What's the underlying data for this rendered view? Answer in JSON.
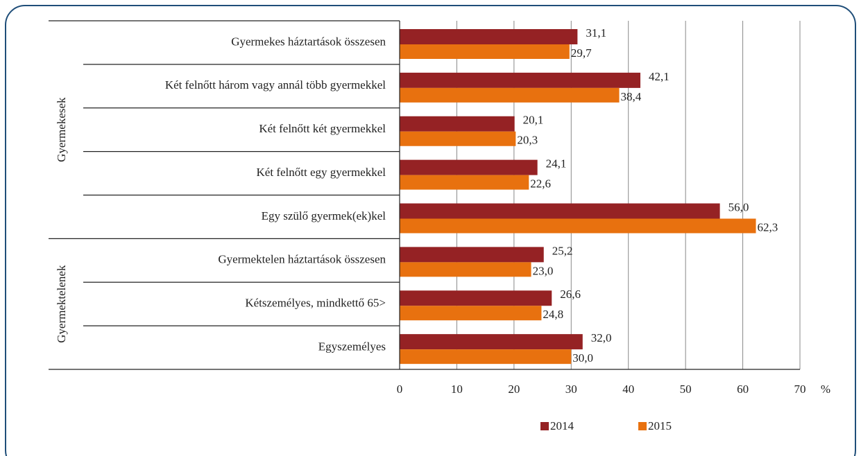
{
  "chart_data": {
    "type": "hbar",
    "category_groups": [
      {
        "name": "Gyermekesek",
        "categories": [
          "Gyermekes háztartások összesen",
          "Két felnőtt három vagy annál több gyermekkel",
          "Két felnőtt két gyermekkel",
          "Két felnőtt egy gyermekkel",
          "Egy szülő gyermek(ek)kel"
        ]
      },
      {
        "name": "Gyermektelenek",
        "categories": [
          "Gyermektelen háztartások összesen",
          "Kétszemélyes, mindkettő 65>",
          "Egyszemélyes"
        ]
      }
    ],
    "series": [
      {
        "name": "2014",
        "color": "#952224",
        "values": [
          31.1,
          42.1,
          20.1,
          24.1,
          56.0,
          25.2,
          26.6,
          32.0
        ],
        "value_labels": [
          "31,1",
          "42,1",
          "20,1",
          "24,1",
          "56,0",
          "25,2",
          "26,6",
          "32,0"
        ]
      },
      {
        "name": "2015",
        "color": "#e8710f",
        "values": [
          29.7,
          38.4,
          20.3,
          22.6,
          62.3,
          23.0,
          24.8,
          30.0
        ],
        "value_labels": [
          "29,7",
          "38,4",
          "20,3",
          "22,6",
          "62,3",
          "23,0",
          "24,8",
          "30,0"
        ]
      }
    ],
    "x_unit": "%",
    "xlim": [
      0,
      70
    ],
    "xticks": [
      0,
      10,
      20,
      30,
      40,
      50,
      60,
      70
    ],
    "grid": true
  }
}
